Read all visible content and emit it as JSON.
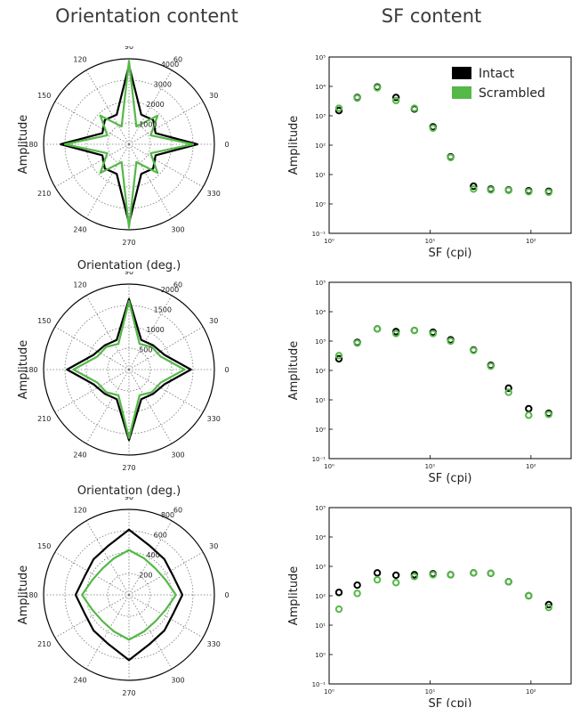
{
  "titles": {
    "left": "Orientation content",
    "right": "SF content"
  },
  "colors": {
    "intact": "#000000",
    "scrambled": "#55b848"
  },
  "chart_data": [
    {
      "type": "polar-line",
      "panel": "polar-1",
      "xlabel": "Orientation (deg.)",
      "ylabel": "Amplitude",
      "rmax": 4000,
      "rticks": [
        1000,
        2000,
        3000,
        4000
      ],
      "rtick_labels": [
        "1000",
        "2000",
        "3000",
        "4000"
      ],
      "angle_labels": [
        "0",
        "30",
        "60",
        "90",
        "120",
        "150",
        "180",
        "210",
        "240",
        "270",
        "300",
        "330"
      ],
      "series": [
        {
          "key": "intact",
          "angles": [
            0,
            22.5,
            45,
            67.5,
            90,
            112.5,
            135,
            157.5,
            180,
            202.5,
            225,
            247.5,
            270,
            292.5,
            315,
            337.5
          ],
          "values": [
            3200,
            1350,
            1600,
            1500,
            3700,
            1500,
            1600,
            1350,
            3200,
            1350,
            1600,
            1500,
            3700,
            1500,
            1600,
            1350
          ]
        },
        {
          "key": "scrambled",
          "angles": [
            0,
            22.5,
            45,
            67.5,
            90,
            112.5,
            135,
            157.5,
            180,
            202.5,
            225,
            247.5,
            270,
            292.5,
            315,
            337.5
          ],
          "values": [
            3000,
            1100,
            1900,
            900,
            3900,
            900,
            1900,
            1100,
            3000,
            1100,
            1900,
            900,
            3900,
            900,
            1900,
            1100
          ]
        }
      ]
    },
    {
      "type": "scatter",
      "panel": "sf-1",
      "xlabel": "SF (cpi)",
      "ylabel": "Amplitude",
      "xscale": "log",
      "yscale": "log",
      "xlim": [
        1,
        250
      ],
      "ylim": [
        0.1,
        100000
      ],
      "xticks": [
        1,
        10,
        100
      ],
      "xtick_labels": [
        "10⁰",
        "10¹",
        "10²"
      ],
      "yticks": [
        0.1,
        1,
        10,
        100,
        1000,
        10000,
        100000
      ],
      "ytick_labels": [
        "10⁻¹",
        "10⁰",
        "10¹",
        "10²",
        "10³",
        "10⁴",
        "10⁵"
      ],
      "legend": {
        "position": "top-right",
        "entries": [
          {
            "key": "intact",
            "label": "Intact"
          },
          {
            "key": "scrambled",
            "label": "Scrambled"
          }
        ]
      },
      "series": [
        {
          "key": "intact",
          "x": [
            1.25,
            1.9,
            3,
            4.6,
            7,
            10.7,
            16,
            27,
            40,
            60,
            95,
            150
          ],
          "y": [
            1500,
            4200,
            9500,
            4200,
            1700,
            420,
            40,
            4,
            3.2,
            3,
            2.8,
            2.7
          ]
        },
        {
          "key": "scrambled",
          "x": [
            1.25,
            1.9,
            3,
            4.6,
            7,
            10.7,
            16,
            27,
            40,
            60,
            95,
            150
          ],
          "y": [
            1800,
            4000,
            9000,
            3300,
            1800,
            380,
            38,
            3.2,
            3,
            2.9,
            2.6,
            2.5
          ]
        }
      ]
    },
    {
      "type": "polar-line",
      "panel": "polar-2",
      "xlabel": "Orientation (deg.)",
      "ylabel": "Amplitude",
      "rmax": 2000,
      "rticks": [
        500,
        1000,
        1500,
        2000
      ],
      "rtick_labels": [
        "500",
        "1000",
        "1500",
        "2000"
      ],
      "angle_labels": [
        "0",
        "30",
        "60",
        "90",
        "120",
        "150",
        "180",
        "210",
        "240",
        "270",
        "300",
        "330"
      ],
      "series": [
        {
          "key": "intact",
          "angles": [
            0,
            22.5,
            45,
            67.5,
            90,
            112.5,
            135,
            157.5,
            180,
            202.5,
            225,
            247.5,
            270,
            292.5,
            315,
            337.5
          ],
          "values": [
            1450,
            900,
            800,
            750,
            1650,
            750,
            800,
            900,
            1450,
            900,
            800,
            750,
            1650,
            750,
            800,
            900
          ]
        },
        {
          "key": "scrambled",
          "angles": [
            0,
            22.5,
            45,
            67.5,
            90,
            112.5,
            135,
            157.5,
            180,
            202.5,
            225,
            247.5,
            270,
            292.5,
            315,
            337.5
          ],
          "values": [
            1300,
            800,
            750,
            650,
            1600,
            650,
            750,
            800,
            1300,
            800,
            750,
            650,
            1600,
            650,
            750,
            800
          ]
        }
      ]
    },
    {
      "type": "scatter",
      "panel": "sf-2",
      "xlabel": "SF (cpi)",
      "ylabel": "Amplitude",
      "xscale": "log",
      "yscale": "log",
      "xlim": [
        1,
        250
      ],
      "ylim": [
        0.1,
        100000
      ],
      "xticks": [
        1,
        10,
        100
      ],
      "xtick_labels": [
        "10⁰",
        "10¹",
        "10²"
      ],
      "yticks": [
        0.1,
        1,
        10,
        100,
        1000,
        10000,
        100000
      ],
      "ytick_labels": [
        "10⁻¹",
        "10⁰",
        "10¹",
        "10²",
        "10³",
        "10⁴",
        "10⁵"
      ],
      "series": [
        {
          "key": "intact",
          "x": [
            1.25,
            1.9,
            3,
            4.6,
            7,
            10.7,
            16,
            27,
            40,
            60,
            95,
            150
          ],
          "y": [
            250,
            900,
            2600,
            2100,
            2300,
            2000,
            1100,
            500,
            150,
            25,
            5,
            3.5
          ]
        },
        {
          "key": "scrambled",
          "x": [
            1.25,
            1.9,
            3,
            4.6,
            7,
            10.7,
            16,
            27,
            40,
            60,
            95,
            150
          ],
          "y": [
            320,
            850,
            2600,
            1800,
            2300,
            1800,
            1000,
            480,
            140,
            18,
            3,
            3.2
          ]
        }
      ]
    },
    {
      "type": "polar-line",
      "panel": "polar-3",
      "xlabel": "Orientation (deg.)",
      "ylabel": "Amplitude",
      "rmax": 800,
      "rticks": [
        200,
        400,
        600,
        800
      ],
      "rtick_labels": [
        "200",
        "400",
        "600",
        "800"
      ],
      "angle_labels": [
        "0",
        "30",
        "60",
        "90",
        "120",
        "150",
        "180",
        "210",
        "240",
        "270",
        "300",
        "330"
      ],
      "series": [
        {
          "key": "intact",
          "angles": [
            0,
            22.5,
            45,
            67.5,
            90,
            112.5,
            135,
            157.5,
            180,
            202.5,
            225,
            247.5,
            270,
            292.5,
            315,
            337.5
          ],
          "values": [
            500,
            450,
            470,
            500,
            610,
            500,
            470,
            450,
            500,
            450,
            470,
            500,
            610,
            500,
            470,
            450
          ]
        },
        {
          "key": "scrambled",
          "angles": [
            0,
            22.5,
            45,
            67.5,
            90,
            112.5,
            135,
            157.5,
            180,
            202.5,
            225,
            247.5,
            270,
            292.5,
            315,
            337.5
          ],
          "values": [
            440,
            370,
            350,
            370,
            420,
            370,
            350,
            370,
            440,
            370,
            350,
            370,
            420,
            370,
            350,
            370
          ]
        }
      ]
    },
    {
      "type": "scatter",
      "panel": "sf-3",
      "xlabel": "SF (cpi)",
      "ylabel": "Amplitude",
      "xscale": "log",
      "yscale": "log",
      "xlim": [
        1,
        250
      ],
      "ylim": [
        0.1,
        100000
      ],
      "xticks": [
        1,
        10,
        100
      ],
      "xtick_labels": [
        "10⁰",
        "10¹",
        "10²"
      ],
      "yticks": [
        0.1,
        1,
        10,
        100,
        1000,
        10000,
        100000
      ],
      "ytick_labels": [
        "10⁻¹",
        "10⁰",
        "10¹",
        "10²",
        "10³",
        "10⁴",
        "10⁵"
      ],
      "series": [
        {
          "key": "intact",
          "x": [
            1.25,
            1.9,
            3,
            4.6,
            7,
            10.7,
            16,
            27,
            40,
            60,
            95,
            150
          ],
          "y": [
            130,
            230,
            600,
            500,
            520,
            560,
            520,
            600,
            580,
            300,
            100,
            50
          ]
        },
        {
          "key": "scrambled",
          "x": [
            1.25,
            1.9,
            3,
            4.6,
            7,
            10.7,
            16,
            27,
            40,
            60,
            95,
            150
          ],
          "y": [
            35,
            120,
            350,
            280,
            450,
            520,
            520,
            600,
            580,
            300,
            100,
            40
          ]
        }
      ]
    }
  ]
}
